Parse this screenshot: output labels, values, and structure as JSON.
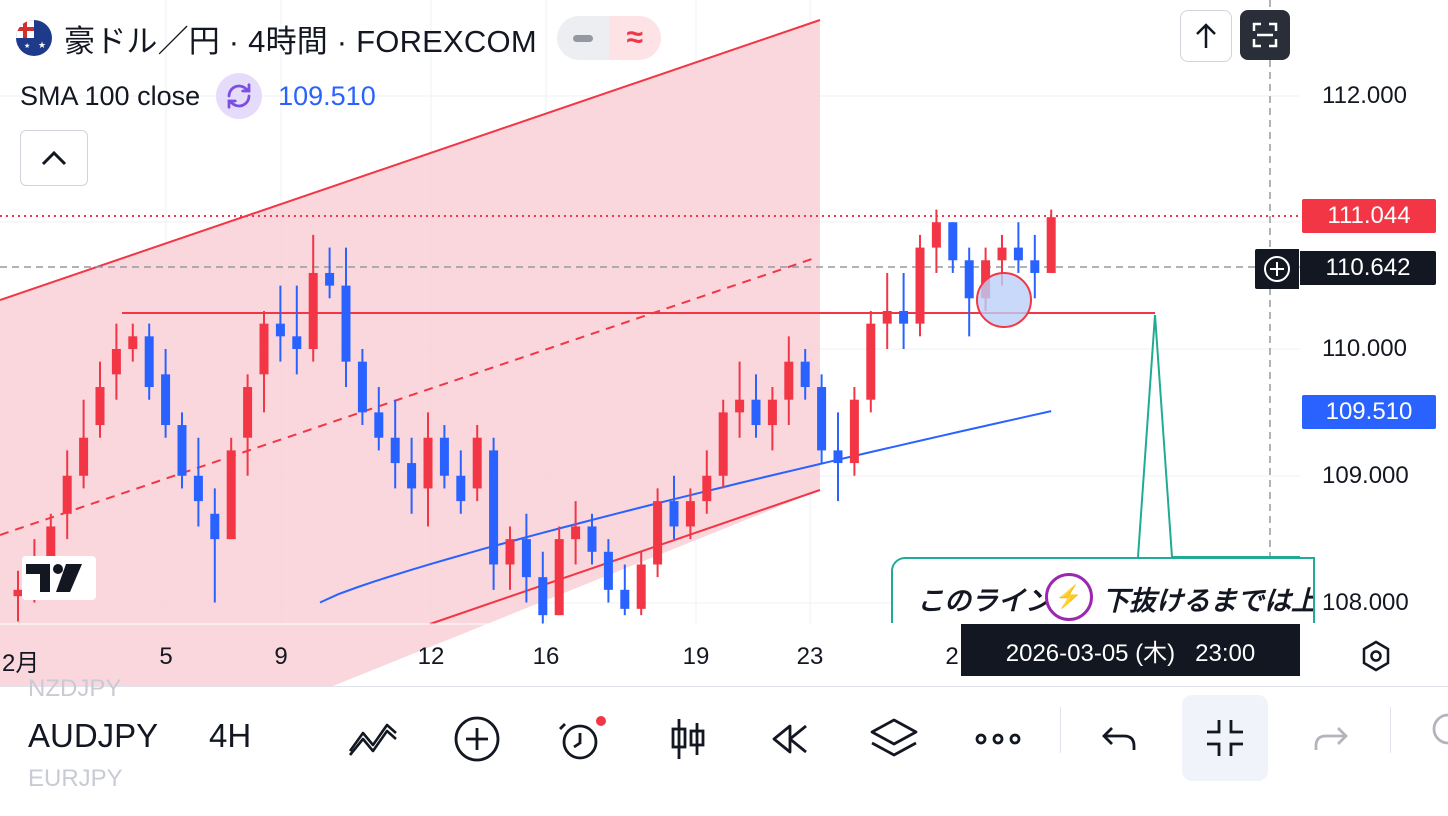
{
  "header": {
    "title": "豪ドル／円 · 4時間 · FOREXCOM",
    "flag_icon": "australia-flag-icon",
    "minus_toggle_icon": "minus-icon",
    "wave_toggle_symbol": "≈"
  },
  "indicator": {
    "label": "SMA 100 close",
    "value": "109.510",
    "icon": "sync-icon"
  },
  "top_right": {
    "share_icon": "arrow-up-icon",
    "fullscreen_icon": "fullscreen-icon"
  },
  "price_axis": {
    "ticks": [
      "112.000",
      "110.000",
      "109.000",
      "108.000"
    ],
    "last_price": "111.044",
    "crosshair_price": "110.642",
    "sma_price": "109.510",
    "last_price_color": "#f23645",
    "sma_color": "#2962ff"
  },
  "time_axis": {
    "ticks": [
      "2月",
      "5",
      "9",
      "12",
      "16",
      "19",
      "23",
      "2"
    ],
    "crosshair_time": "2026-03-05 (木)   23:00",
    "settings_icon": "settings-hexagon-icon"
  },
  "note": {
    "text": "このライン",
    "text_after": "下抜けるまでは上",
    "icon": "lightning-icon"
  },
  "toolbar": {
    "ghost_prev": "NZDJPY",
    "symbol": "AUDJPY",
    "ghost_next": "EURJPY",
    "timeframe": "4H",
    "buttons": [
      {
        "name": "indicators",
        "icon": "indicators-icon"
      },
      {
        "name": "add",
        "icon": "plus-circle-icon"
      },
      {
        "name": "alert",
        "icon": "alarm-clock-icon"
      },
      {
        "name": "chart-type",
        "icon": "candles-icon"
      },
      {
        "name": "replay",
        "icon": "rewind-icon"
      },
      {
        "name": "layers",
        "icon": "layers-icon"
      },
      {
        "name": "more",
        "icon": "more-icon"
      },
      {
        "name": "undo",
        "icon": "undo-icon"
      },
      {
        "name": "collapse",
        "icon": "collapse-icon"
      },
      {
        "name": "redo",
        "icon": "redo-icon"
      }
    ]
  },
  "colors": {
    "up": "#f23645",
    "down": "#2962ff",
    "channel_fill": "#f8cdd3",
    "note_border": "#22ab94"
  },
  "chart_data": {
    "type": "candlestick",
    "symbol": "AUDJPY",
    "timeframe": "4H",
    "ylim": [
      107.8,
      112.6
    ],
    "y_ticks": [
      108.0,
      109.0,
      110.0,
      112.0
    ],
    "x_ticks": [
      "2月",
      "5",
      "9",
      "12",
      "16",
      "19",
      "23",
      "2"
    ],
    "horizontal_support": 110.27,
    "last_price": 111.044,
    "crosshair_price": 110.642,
    "candles": [
      [
        108.05,
        108.25,
        107.85,
        108.1
      ],
      [
        108.15,
        108.5,
        108.0,
        108.3
      ],
      [
        108.3,
        108.7,
        108.2,
        108.6
      ],
      [
        108.7,
        109.2,
        108.5,
        109.0
      ],
      [
        109.0,
        109.6,
        108.9,
        109.3
      ],
      [
        109.4,
        109.9,
        109.3,
        109.7
      ],
      [
        109.8,
        110.2,
        109.6,
        110.0
      ],
      [
        110.0,
        110.2,
        109.9,
        110.1
      ],
      [
        110.1,
        110.2,
        109.6,
        109.7
      ],
      [
        109.8,
        110.0,
        109.3,
        109.4
      ],
      [
        109.4,
        109.5,
        108.9,
        109.0
      ],
      [
        109.0,
        109.3,
        108.6,
        108.8
      ],
      [
        108.7,
        108.9,
        108.0,
        108.5
      ],
      [
        108.5,
        109.3,
        108.5,
        109.2
      ],
      [
        109.3,
        109.8,
        109.0,
        109.7
      ],
      [
        109.8,
        110.3,
        109.5,
        110.2
      ],
      [
        110.2,
        110.5,
        109.9,
        110.1
      ],
      [
        110.1,
        110.5,
        109.8,
        110.0
      ],
      [
        110.0,
        110.9,
        109.9,
        110.6
      ],
      [
        110.6,
        110.8,
        110.4,
        110.5
      ],
      [
        110.5,
        110.8,
        109.7,
        109.9
      ],
      [
        109.9,
        110.0,
        109.4,
        109.5
      ],
      [
        109.5,
        109.7,
        109.2,
        109.3
      ],
      [
        109.3,
        109.6,
        108.9,
        109.1
      ],
      [
        109.1,
        109.3,
        108.7,
        108.9
      ],
      [
        108.9,
        109.5,
        108.6,
        109.3
      ],
      [
        109.3,
        109.4,
        108.9,
        109.0
      ],
      [
        109.0,
        109.2,
        108.7,
        108.8
      ],
      [
        108.9,
        109.4,
        108.8,
        109.3
      ],
      [
        109.2,
        109.3,
        108.1,
        108.3
      ],
      [
        108.3,
        108.6,
        108.1,
        108.5
      ],
      [
        108.5,
        108.7,
        108.0,
        108.2
      ],
      [
        108.2,
        108.4,
        107.8,
        107.9
      ],
      [
        107.9,
        108.6,
        107.9,
        108.5
      ],
      [
        108.5,
        108.8,
        108.3,
        108.6
      ],
      [
        108.6,
        108.7,
        108.3,
        108.4
      ],
      [
        108.4,
        108.5,
        108.0,
        108.1
      ],
      [
        108.1,
        108.3,
        107.9,
        107.95
      ],
      [
        107.95,
        108.4,
        107.9,
        108.3
      ],
      [
        108.3,
        108.9,
        108.2,
        108.8
      ],
      [
        108.8,
        109.0,
        108.5,
        108.6
      ],
      [
        108.6,
        108.9,
        108.5,
        108.8
      ],
      [
        108.8,
        109.2,
        108.7,
        109.0
      ],
      [
        109.0,
        109.6,
        108.9,
        109.5
      ],
      [
        109.5,
        109.9,
        109.3,
        109.6
      ],
      [
        109.6,
        109.8,
        109.3,
        109.4
      ],
      [
        109.4,
        109.7,
        109.2,
        109.6
      ],
      [
        109.6,
        110.1,
        109.4,
        109.9
      ],
      [
        109.9,
        110.0,
        109.6,
        109.7
      ],
      [
        109.7,
        109.8,
        109.1,
        109.2
      ],
      [
        109.2,
        109.5,
        108.8,
        109.1
      ],
      [
        109.1,
        109.7,
        109.0,
        109.6
      ],
      [
        109.6,
        110.3,
        109.5,
        110.2
      ],
      [
        110.2,
        110.6,
        110.0,
        110.3
      ],
      [
        110.3,
        110.6,
        110.0,
        110.2
      ],
      [
        110.2,
        110.9,
        110.1,
        110.8
      ],
      [
        110.8,
        111.1,
        110.6,
        111.0
      ],
      [
        111.0,
        111.0,
        110.6,
        110.7
      ],
      [
        110.7,
        110.8,
        110.1,
        110.4
      ],
      [
        110.4,
        110.8,
        110.3,
        110.7
      ],
      [
        110.7,
        110.9,
        110.5,
        110.8
      ],
      [
        110.8,
        111.0,
        110.6,
        110.7
      ],
      [
        110.7,
        110.9,
        110.4,
        110.6
      ],
      [
        110.6,
        111.1,
        110.6,
        111.04
      ]
    ],
    "sma": {
      "name": "SMA 100 close",
      "start": 108.0,
      "end": 109.51
    }
  }
}
